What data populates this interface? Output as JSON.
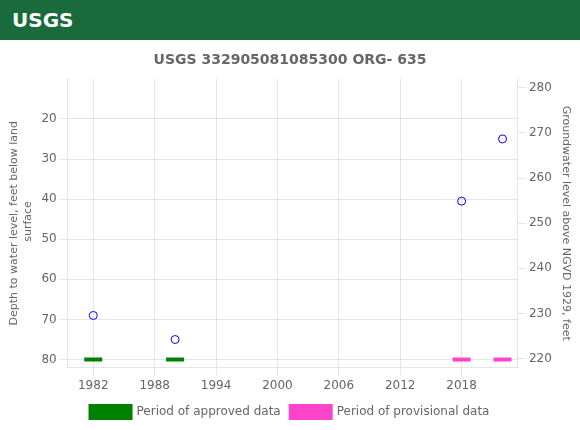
{
  "chart_data": {
    "type": "scatter",
    "title": "USGS 332905081085300 ORG- 635",
    "header": {
      "text": "USGS",
      "color": "#1a6b3c"
    },
    "ylabel": "Depth to water level, feet below land\n surface",
    "y2label": "Groundwater level above NGVD 1929, feet",
    "xlim": [
      1979.5,
      2023.5
    ],
    "xticks": [
      1982,
      1988,
      1994,
      2000,
      2006,
      2012,
      2018
    ],
    "ylim": [
      82,
      10
    ],
    "yticks": [
      20,
      30,
      40,
      50,
      60,
      70,
      80
    ],
    "y2lim": [
      218,
      282
    ],
    "y2ticks": [
      280,
      270,
      260,
      250,
      240,
      230,
      220
    ],
    "grid": true,
    "legend": "bottom",
    "series": [
      {
        "type": "scatter",
        "color": "blue",
        "marker": "open_circle",
        "x": [
          1982,
          1990,
          2018,
          2022
        ],
        "values": [
          69,
          75,
          40.5,
          25
        ]
      },
      {
        "name": "Period of approved data",
        "color": "#008000",
        "marker": "line",
        "x": [
          1982,
          1990
        ],
        "values": [
          80,
          80
        ]
      },
      {
        "name": "Period of provisional data",
        "color": "#ff44cc",
        "marker": "line",
        "x": [
          2018,
          2022
        ],
        "values": [
          80,
          80
        ]
      }
    ]
  }
}
